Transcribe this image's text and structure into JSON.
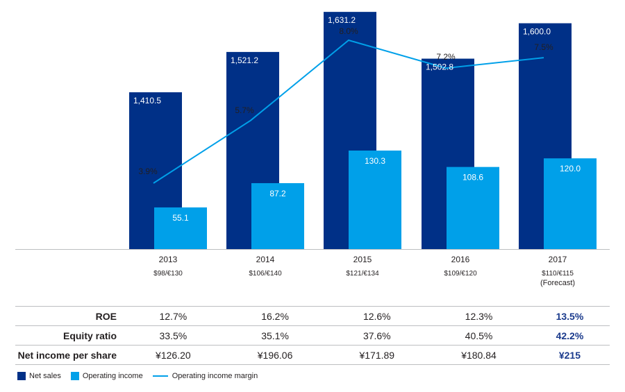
{
  "colors": {
    "net_sales": "#003087",
    "operating_income": "#00a0e9",
    "margin_line": "#00a0e9",
    "forecast_text": "#1a3a8c"
  },
  "chart_data": {
    "type": "bar",
    "categories": [
      "2013",
      "2014",
      "2015",
      "2016",
      "2017"
    ],
    "category_notes": [
      "$98/€130",
      "$106/€140",
      "$121/€134",
      "$109/€120",
      "$110/€115"
    ],
    "forecast_note": "(Forecast)",
    "series": [
      {
        "name": "Net sales",
        "values": [
          1410.5,
          1521.2,
          1631.2,
          1502.8,
          1600.0
        ],
        "labels": [
          "1,410.5",
          "1,521.2",
          "1,631.2",
          "1,502.8",
          "1,600.0"
        ]
      },
      {
        "name": "Operating income",
        "values": [
          55.1,
          87.2,
          130.3,
          108.6,
          120.0
        ],
        "labels": [
          "55.1",
          "87.2",
          "130.3",
          "108.6",
          "120.0"
        ]
      },
      {
        "name": "Operating income margin",
        "type": "line",
        "values": [
          3.9,
          5.7,
          8.0,
          7.2,
          7.5
        ],
        "labels": [
          "3.9%",
          "5.7%",
          "8.0%",
          "7.2%",
          "7.5%"
        ]
      }
    ]
  },
  "metrics_table": {
    "rows": [
      {
        "label": "ROE",
        "values": [
          "12.7%",
          "16.2%",
          "12.6%",
          "12.3%",
          "13.5%"
        ]
      },
      {
        "label": "Equity ratio",
        "values": [
          "33.5%",
          "35.1%",
          "37.6%",
          "40.5%",
          "42.2%"
        ]
      },
      {
        "label": "Net income per share",
        "values": [
          "¥126.20",
          "¥196.06",
          "¥171.89",
          "¥180.84",
          "¥215"
        ]
      }
    ]
  },
  "legend": {
    "net_sales": "Net sales",
    "operating_income": "Operating income",
    "margin": "Operating income margin"
  }
}
